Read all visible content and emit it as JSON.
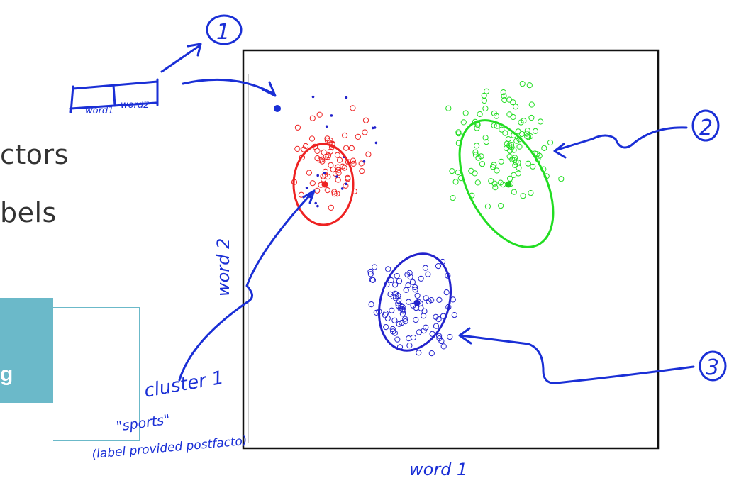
{
  "slide": {
    "line1": "ctors",
    "line2": "bels",
    "box_label": "g"
  },
  "annotations": {
    "vector_cell1": "word1",
    "vector_cell2": "word2",
    "n1": "1",
    "n2": "2",
    "n3": "3",
    "cluster_label": "cluster 1",
    "sports_label": "\"sports\"",
    "postfacto_label": "(label provided postfacto)",
    "xlabel": "word 1",
    "ylabel": "word 2"
  },
  "colors": {
    "ink": "#1a2fd6",
    "red": "#ee2222",
    "green": "#22dd22",
    "blue": "#2222cc",
    "teal": "#6bb9c9"
  },
  "chart_data": {
    "type": "scatter",
    "xlabel": "word 1",
    "ylabel": "word 2",
    "clusters": [
      {
        "color": "red",
        "center": [
          0.22,
          0.73
        ],
        "spread": [
          0.08,
          0.09
        ],
        "count": 70,
        "ellipse": [
          0.07,
          0.11,
          0
        ]
      },
      {
        "color": "green",
        "center": [
          0.63,
          0.76
        ],
        "spread": [
          0.1,
          0.12
        ],
        "count": 110,
        "ellipse": [
          0.09,
          0.17,
          -28
        ]
      },
      {
        "color": "blue",
        "center": [
          0.4,
          0.37
        ],
        "spread": [
          0.08,
          0.11
        ],
        "count": 95,
        "ellipse": [
          0.07,
          0.12,
          18
        ]
      }
    ],
    "unlabeled_points": 18
  }
}
